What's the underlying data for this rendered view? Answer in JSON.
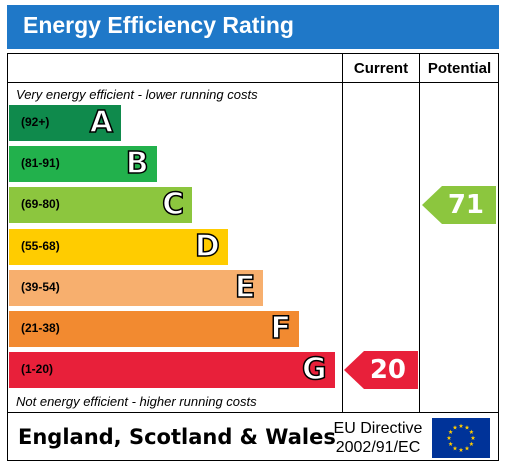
{
  "header": {
    "title": "Energy Efficiency Rating"
  },
  "columns": {
    "current": "Current",
    "potential": "Potential"
  },
  "notes": {
    "top": "Very energy efficient - lower running costs",
    "bottom": "Not energy efficient - higher running costs"
  },
  "chart_data": {
    "type": "bar",
    "bands": [
      {
        "letter": "A",
        "range": "(92+)",
        "color": "#0f8a4c"
      },
      {
        "letter": "B",
        "range": "(81-91)",
        "color": "#22b14c"
      },
      {
        "letter": "C",
        "range": "(69-80)",
        "color": "#8cc63e"
      },
      {
        "letter": "D",
        "range": "(55-68)",
        "color": "#ffcc00"
      },
      {
        "letter": "E",
        "range": "(39-54)",
        "color": "#f7af6e"
      },
      {
        "letter": "F",
        "range": "(21-38)",
        "color": "#f28a30"
      },
      {
        "letter": "G",
        "range": "(1-20)",
        "color": "#e8203a"
      }
    ],
    "current": {
      "value": "20",
      "band": "G",
      "color": "#e8203a"
    },
    "potential": {
      "value": "71",
      "band": "C",
      "color": "#8cc63e"
    }
  },
  "footer": {
    "region": "England, Scotland & Wales",
    "directive_line1": "EU Directive",
    "directive_line2": "2002/91/EC"
  }
}
